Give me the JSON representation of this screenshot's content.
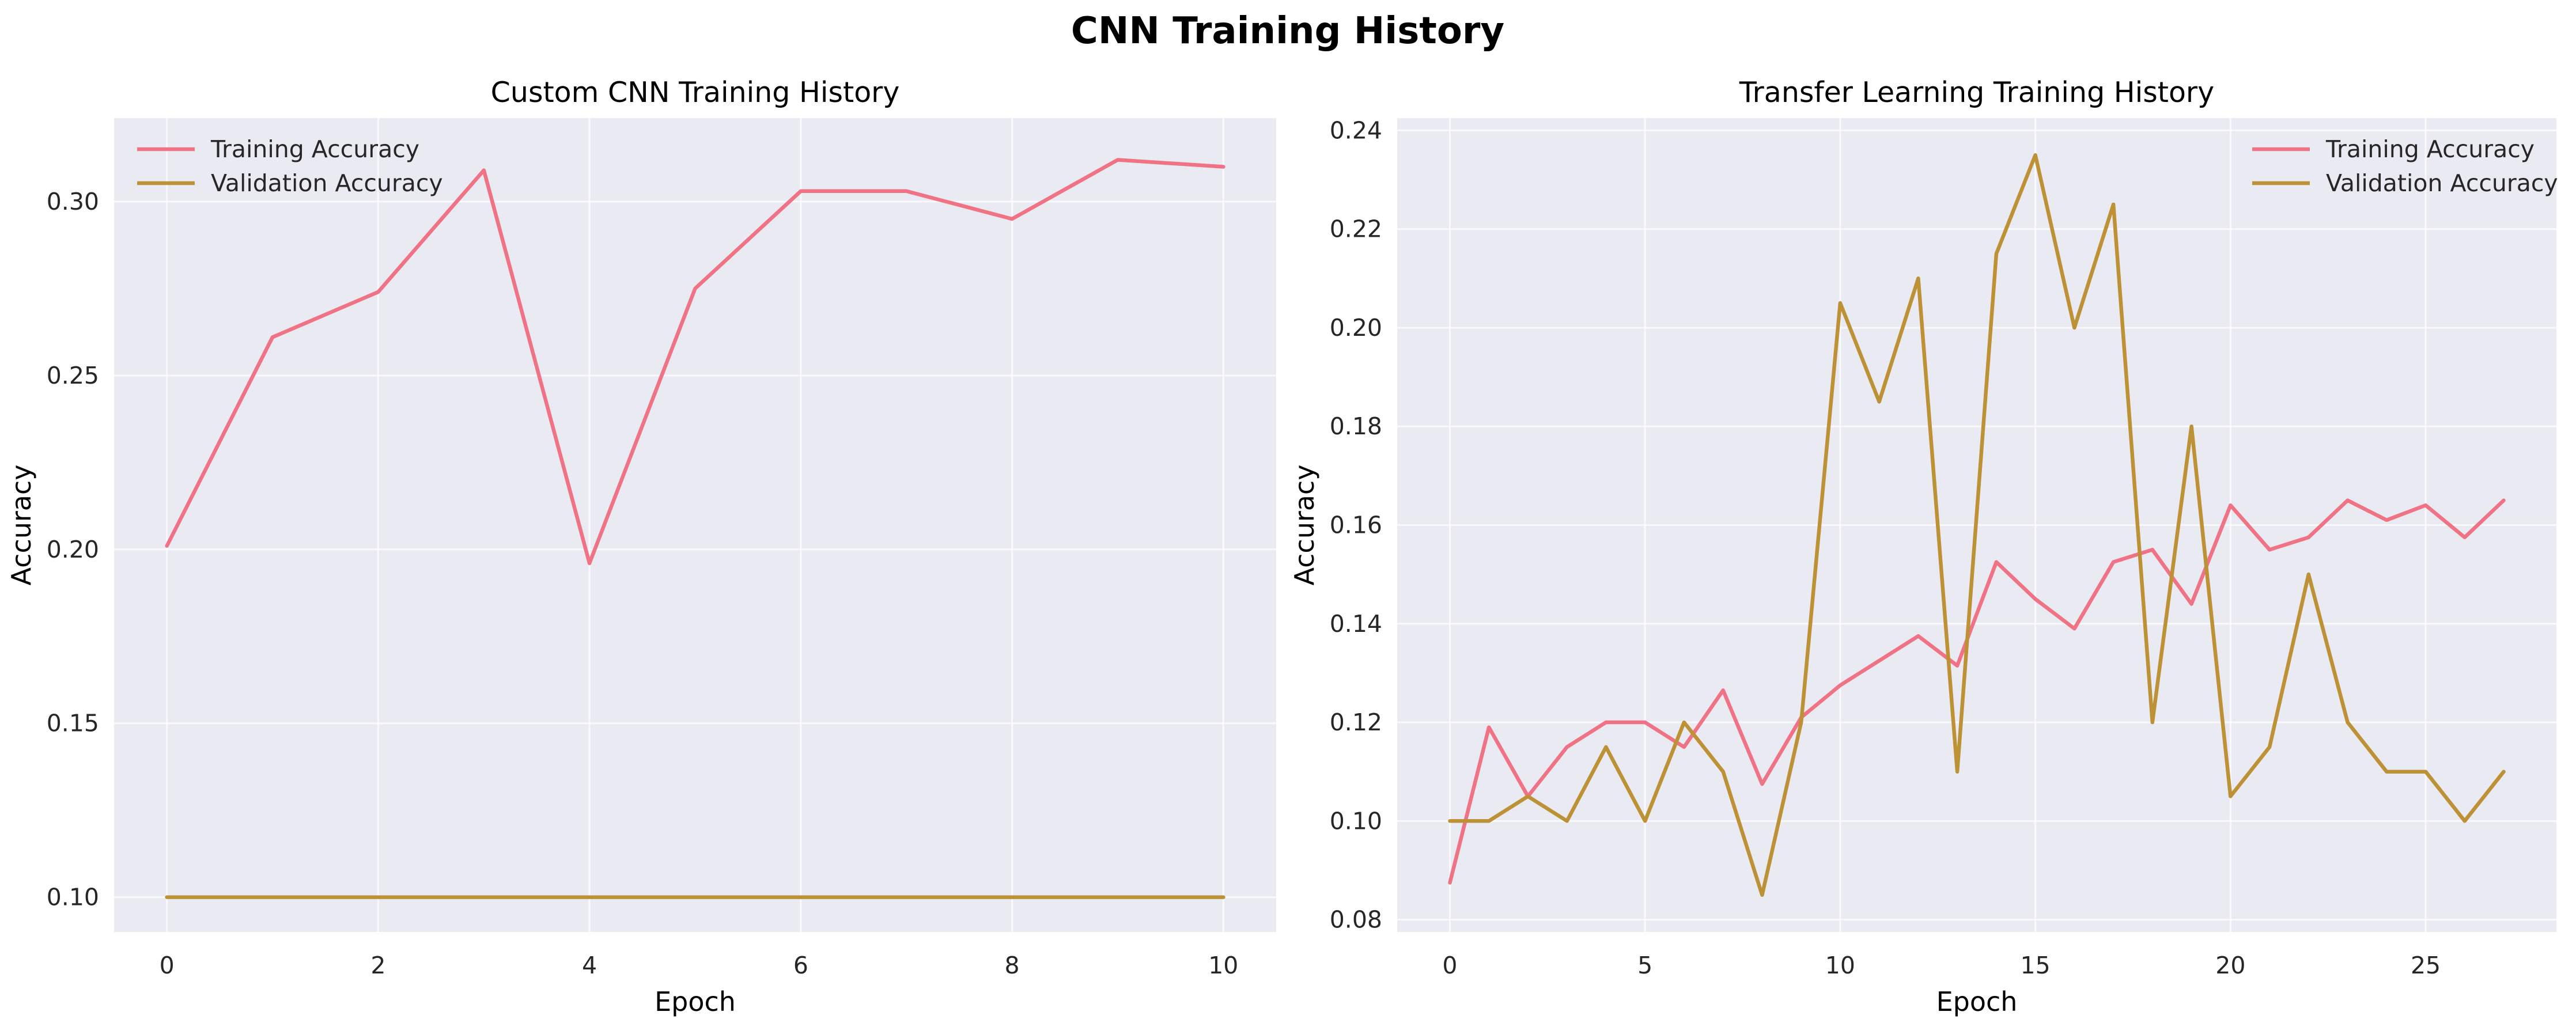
{
  "figure": {
    "title": "CNN Training History"
  },
  "chart_data": [
    {
      "type": "line",
      "title": "Custom CNN Training History",
      "xlabel": "Epoch",
      "ylabel": "Accuracy",
      "xlim": [
        -0.5,
        10.5
      ],
      "ylim": [
        0.09,
        0.324
      ],
      "xticks": [
        0,
        2,
        4,
        6,
        8,
        10
      ],
      "yticks": [
        0.1,
        0.15,
        0.2,
        0.25,
        0.3
      ],
      "ytick_decimals": 2,
      "grid": true,
      "legend_position": "top-left",
      "x": [
        0,
        1,
        2,
        3,
        4,
        5,
        6,
        7,
        8,
        9,
        10
      ],
      "series": [
        {
          "name": "Training Accuracy",
          "color": "#f07285",
          "values": [
            0.201,
            0.261,
            0.274,
            0.309,
            0.196,
            0.275,
            0.303,
            0.303,
            0.295,
            0.312,
            0.31
          ]
        },
        {
          "name": "Validation Accuracy",
          "color": "#bd9236",
          "values": [
            0.1,
            0.1,
            0.1,
            0.1,
            0.1,
            0.1,
            0.1,
            0.1,
            0.1,
            0.1,
            0.1
          ]
        }
      ]
    },
    {
      "type": "line",
      "title": "Transfer Learning Training History",
      "xlabel": "Epoch",
      "ylabel": "Accuracy",
      "xlim": [
        -1.35,
        28.35
      ],
      "ylim": [
        0.0775,
        0.2425
      ],
      "xticks": [
        0,
        5,
        10,
        15,
        20,
        25
      ],
      "yticks": [
        0.08,
        0.1,
        0.12,
        0.14,
        0.16,
        0.18,
        0.2,
        0.22,
        0.24
      ],
      "ytick_decimals": 2,
      "grid": true,
      "legend_position": "top-right",
      "x": [
        0,
        1,
        2,
        3,
        4,
        5,
        6,
        7,
        8,
        9,
        10,
        11,
        12,
        13,
        14,
        15,
        16,
        17,
        18,
        19,
        20,
        21,
        22,
        23,
        24,
        25,
        26,
        27
      ],
      "series": [
        {
          "name": "Training Accuracy",
          "color": "#f07285",
          "values": [
            0.0875,
            0.119,
            0.105,
            0.115,
            0.12,
            0.12,
            0.115,
            0.1265,
            0.1075,
            0.121,
            0.1275,
            0.1325,
            0.1375,
            0.1315,
            0.1525,
            0.145,
            0.139,
            0.1525,
            0.155,
            0.144,
            0.164,
            0.155,
            0.1575,
            0.165,
            0.161,
            0.164,
            0.1575,
            0.165
          ]
        },
        {
          "name": "Validation Accuracy",
          "color": "#bd9236",
          "values": [
            0.1,
            0.1,
            0.105,
            0.1,
            0.115,
            0.1,
            0.12,
            0.11,
            0.085,
            0.12,
            0.205,
            0.185,
            0.21,
            0.11,
            0.215,
            0.235,
            0.2,
            0.225,
            0.12,
            0.18,
            0.105,
            0.115,
            0.15,
            0.12,
            0.11,
            0.11,
            0.1,
            0.11
          ]
        }
      ]
    }
  ]
}
